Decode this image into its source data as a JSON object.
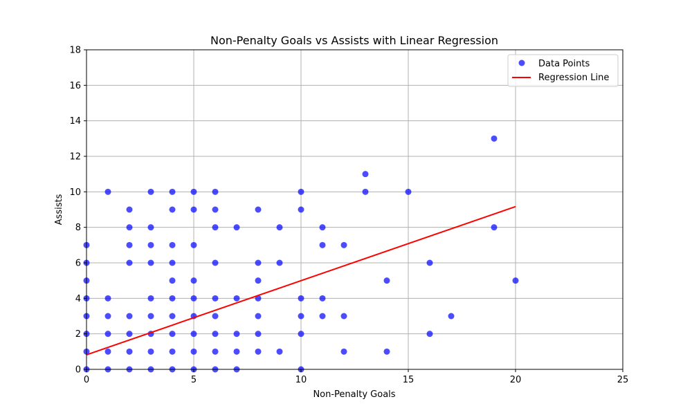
{
  "chart_data": {
    "type": "scatter",
    "title": "Non-Penalty Goals vs Assists with Linear Regression",
    "xlabel": "Non-Penalty Goals",
    "ylabel": "Assists",
    "xlim": [
      0,
      25
    ],
    "ylim": [
      0,
      18
    ],
    "xticks": [
      "0",
      "5",
      "10",
      "15",
      "20",
      "25"
    ],
    "yticks": [
      "0",
      "2",
      "4",
      "6",
      "8",
      "10",
      "12",
      "14",
      "16",
      "18"
    ],
    "grid": true,
    "legend_position": "top-right",
    "series": [
      {
        "name": "Data Points",
        "kind": "scatter",
        "color": "#0000ff",
        "points": [
          [
            0,
            0
          ],
          [
            0,
            1
          ],
          [
            0,
            2
          ],
          [
            0,
            3
          ],
          [
            0,
            4
          ],
          [
            0,
            5
          ],
          [
            0,
            6
          ],
          [
            0,
            7
          ],
          [
            1,
            0
          ],
          [
            1,
            1
          ],
          [
            1,
            2
          ],
          [
            1,
            3
          ],
          [
            1,
            4
          ],
          [
            1,
            10
          ],
          [
            2,
            0
          ],
          [
            2,
            1
          ],
          [
            2,
            2
          ],
          [
            2,
            3
          ],
          [
            2,
            6
          ],
          [
            2,
            7
          ],
          [
            2,
            8
          ],
          [
            2,
            9
          ],
          [
            3,
            0
          ],
          [
            3,
            1
          ],
          [
            3,
            2
          ],
          [
            3,
            3
          ],
          [
            3,
            4
          ],
          [
            3,
            6
          ],
          [
            3,
            7
          ],
          [
            3,
            8
          ],
          [
            3,
            10
          ],
          [
            4,
            0
          ],
          [
            4,
            1
          ],
          [
            4,
            2
          ],
          [
            4,
            3
          ],
          [
            4,
            4
          ],
          [
            4,
            5
          ],
          [
            4,
            6
          ],
          [
            4,
            7
          ],
          [
            4,
            9
          ],
          [
            4,
            10
          ],
          [
            5,
            0
          ],
          [
            5,
            1
          ],
          [
            5,
            2
          ],
          [
            5,
            3
          ],
          [
            5,
            4
          ],
          [
            5,
            5
          ],
          [
            5,
            7
          ],
          [
            5,
            9
          ],
          [
            5,
            10
          ],
          [
            6,
            0
          ],
          [
            6,
            1
          ],
          [
            6,
            2
          ],
          [
            6,
            3
          ],
          [
            6,
            4
          ],
          [
            6,
            6
          ],
          [
            6,
            8
          ],
          [
            6,
            9
          ],
          [
            6,
            10
          ],
          [
            7,
            0
          ],
          [
            7,
            1
          ],
          [
            7,
            2
          ],
          [
            7,
            4
          ],
          [
            7,
            8
          ],
          [
            8,
            1
          ],
          [
            8,
            2
          ],
          [
            8,
            3
          ],
          [
            8,
            4
          ],
          [
            8,
            5
          ],
          [
            8,
            6
          ],
          [
            8,
            9
          ],
          [
            9,
            1
          ],
          [
            9,
            6
          ],
          [
            9,
            8
          ],
          [
            10,
            0
          ],
          [
            10,
            2
          ],
          [
            10,
            3
          ],
          [
            10,
            4
          ],
          [
            10,
            9
          ],
          [
            10,
            10
          ],
          [
            11,
            3
          ],
          [
            11,
            4
          ],
          [
            11,
            7
          ],
          [
            11,
            8
          ],
          [
            12,
            1
          ],
          [
            12,
            3
          ],
          [
            12,
            7
          ],
          [
            13,
            10
          ],
          [
            13,
            11
          ],
          [
            14,
            1
          ],
          [
            14,
            5
          ],
          [
            15,
            10
          ],
          [
            16,
            2
          ],
          [
            16,
            6
          ],
          [
            17,
            3
          ],
          [
            19,
            8
          ],
          [
            19,
            13
          ],
          [
            20,
            5
          ]
        ]
      },
      {
        "name": "Regression Line",
        "kind": "line",
        "color": "#ff0000",
        "points": [
          [
            0,
            0.82
          ],
          [
            20,
            9.17
          ]
        ]
      }
    ]
  }
}
